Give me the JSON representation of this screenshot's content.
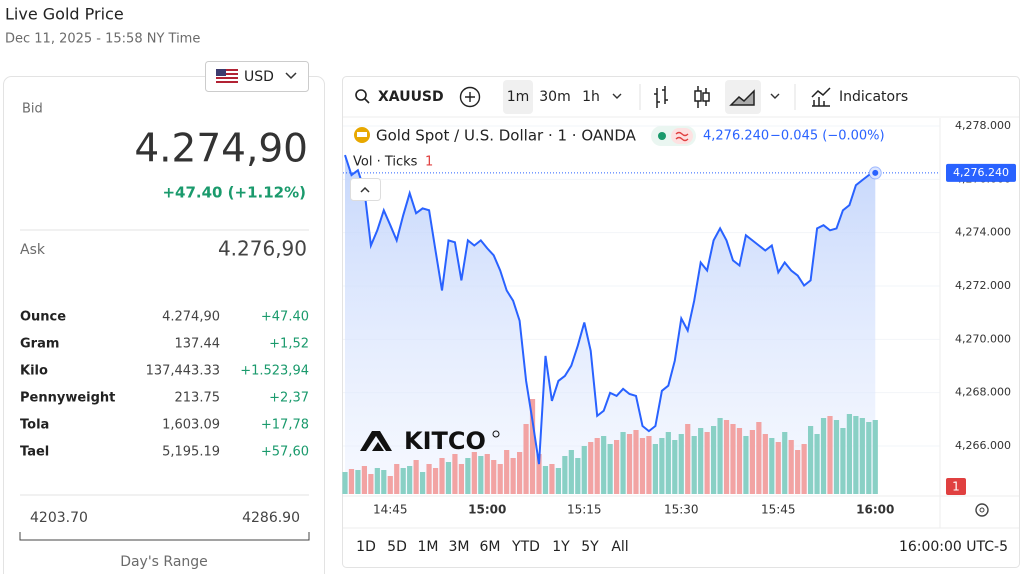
{
  "header": {
    "title": "Live Gold Price",
    "date": "Dec 11, 2025 - 15:58 NY Time"
  },
  "currency": "USD",
  "bid": {
    "label": "Bid",
    "value": "4.274,90",
    "change": "+47.40 (+1.12%)"
  },
  "ask": {
    "label": "Ask",
    "value": "4.276,90"
  },
  "units": [
    [
      "Ounce",
      "4.274,90",
      "+47.40"
    ],
    [
      "Gram",
      "137.44",
      "+1,52"
    ],
    [
      "Kilo",
      "137,443.33",
      "+1.523,94"
    ],
    [
      "Pennyweight",
      "213.75",
      "+2,37"
    ],
    [
      "Tola",
      "1,603.09",
      "+17,78"
    ],
    [
      "Tael",
      "5,195.19",
      "+57,60"
    ]
  ],
  "range": {
    "low": "4203.70",
    "high": "4286.90",
    "label": "Day's Range"
  },
  "toolbar": {
    "symbol": "XAUUSD",
    "intervals": [
      "1m",
      "30m",
      "1h"
    ],
    "indicators": "Indicators"
  },
  "legend": {
    "price": "4,276.240",
    "change": "−0.045 (−0.00%)"
  },
  "logo": "KITCO",
  "periods": [
    "1D",
    "5D",
    "1M",
    "3M",
    "6M",
    "YTD",
    "1Y",
    "5Y",
    "All"
  ],
  "clock": "16:00:00 UTC-5",
  "chart_data": {
    "type": "line",
    "categories": [
      null,
      null,
      null,
      null,
      null,
      null,
      null,
      "14:45",
      null,
      null,
      null,
      null,
      null,
      null,
      null,
      null,
      null,
      null,
      null,
      null,
      null,
      null,
      "15:00",
      null,
      null,
      null,
      null,
      null,
      null,
      null,
      null,
      null,
      null,
      null,
      null,
      null,
      null,
      "15:15",
      null,
      null,
      null,
      null,
      null,
      null,
      null,
      null,
      null,
      null,
      null,
      null,
      null,
      null,
      "15:30",
      null,
      null,
      null,
      null,
      null,
      null,
      null,
      null,
      null,
      null,
      null,
      null,
      null,
      null,
      "15:45",
      null,
      null,
      null,
      null,
      null,
      null,
      null,
      null,
      null,
      null,
      null,
      null,
      null,
      null,
      "16:00"
    ],
    "series": [
      {
        "name": "Gold Spot / U.S. Dollar · 1 · OANDA",
        "color": "#2962ff",
        "values": [
          4276.91,
          4276.16,
          4276.34,
          4275.59,
          4273.52,
          4274.09,
          4274.84,
          4274.28,
          4273.71,
          4274.65,
          4275.48,
          4274.73,
          4274.91,
          4274.84,
          4273.33,
          4271.83,
          4273.71,
          4273.64,
          4272.21,
          4273.71,
          4273.52,
          4273.71,
          4273.41,
          4273.15,
          4272.58,
          4271.83,
          4271.45,
          4270.7,
          4268.44,
          4266.94,
          4265.32,
          4269.38,
          4267.69,
          4268.44,
          4268.63,
          4269.01,
          4269.76,
          4270.63,
          4269.57,
          4267.13,
          4267.32,
          4267.99,
          4267.88,
          4268.14,
          4267.95,
          4267.88,
          4266.75,
          4266.56,
          4266.75,
          4268.07,
          4268.26,
          4269.2,
          4270.78,
          4270.33,
          4271.45,
          4272.88,
          4272.58,
          4273.71,
          4274.16,
          4273.71,
          4272.96,
          4272.77,
          4273.9,
          4273.71,
          4273.52,
          4273.33,
          4273.52,
          4272.51,
          4272.88,
          4272.58,
          4272.39,
          4272.02,
          4272.21,
          4274.16,
          4274.28,
          4274.09,
          4274.16,
          4274.84,
          4275.03,
          4275.78,
          4275.97,
          4276.16,
          4276.24
        ]
      },
      {
        "name": "Vol · Ticks",
        "type": "bar",
        "axis": "y2",
        "count": "1",
        "up_color": "#89d0c5",
        "down_color": "#f2a3a3",
        "values": [
          22,
          25,
          24,
          28,
          20,
          26,
          24,
          18,
          30,
          26,
          28,
          34,
          22,
          30,
          26,
          36,
          32,
          40,
          30,
          36,
          42,
          38,
          40,
          34,
          30,
          44,
          36,
          42,
          70,
          95,
          40,
          28,
          30,
          26,
          38,
          44,
          36,
          48,
          52,
          56,
          58,
          50,
          54,
          62,
          60,
          64,
          56,
          58,
          50,
          56,
          62,
          54,
          60,
          70,
          58,
          66,
          62,
          68,
          76,
          74,
          70,
          66,
          58,
          64,
          72,
          60,
          56,
          52,
          62,
          54,
          44,
          50,
          68,
          60,
          76,
          78,
          74,
          66,
          80,
          78,
          76,
          72,
          74
        ]
      }
    ],
    "price_tag": "4,276.240",
    "ylim": [
      4264.2,
      4278.3
    ],
    "yticks": [
      {
        "value": 4278,
        "label": "4,278.000"
      },
      {
        "value": 4276,
        "label": "4,276.000"
      },
      {
        "value": 4274,
        "label": "4,274.000"
      },
      {
        "value": 4272,
        "label": "4,272.000"
      },
      {
        "value": 4270,
        "label": "4,270.000"
      },
      {
        "value": 4268,
        "label": "4,268.000"
      },
      {
        "value": 4266,
        "label": "4,266.000"
      }
    ],
    "y2lim": [
      0,
      100
    ],
    "grid": true
  }
}
